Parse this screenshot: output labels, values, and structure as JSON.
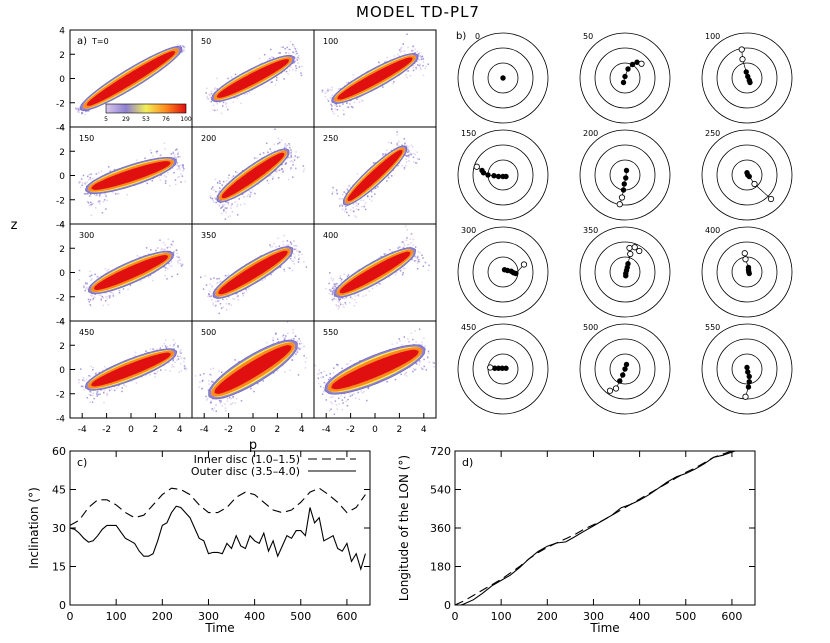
{
  "title": "MODEL TD-PL7",
  "panels": {
    "a": {
      "label": "a)",
      "xlabel": "p",
      "ylabel": "z",
      "xticks": [
        -4,
        -2,
        0,
        2,
        4
      ],
      "yticks": [
        -4,
        -2,
        0,
        2,
        4
      ],
      "xlim": [
        -5,
        5
      ],
      "ylim": [
        -4,
        4
      ],
      "colorbar": {
        "ticks": [
          "5",
          "29",
          "53",
          "76",
          "100"
        ],
        "colors": [
          "#d9c8ec",
          "#8e7fd0",
          "#f2ef59",
          "#ff8a1e",
          "#e01010"
        ]
      },
      "times": [
        "T=0",
        "50",
        "100",
        "150",
        "200",
        "250",
        "300",
        "350",
        "400",
        "450",
        "500",
        "550"
      ]
    },
    "b": {
      "label": "b)",
      "times": [
        "0",
        "50",
        "100",
        "150",
        "200",
        "250",
        "300",
        "350",
        "400",
        "450",
        "500",
        "550"
      ]
    },
    "c": {
      "label": "c)",
      "xlabel": "Time",
      "ylabel": "Inclination (°)",
      "xticks": [
        0,
        100,
        200,
        300,
        400,
        500,
        600
      ],
      "yticks": [
        0,
        15,
        30,
        45,
        60
      ],
      "xlim": [
        0,
        650
      ],
      "ylim": [
        0,
        60
      ],
      "legend": [
        "Inner disc (1.0–1.5)",
        "Outer disc (3.5–4.0)"
      ]
    },
    "d": {
      "label": "d)",
      "xlabel": "Time",
      "ylabel": "Longitude of the LON (°)",
      "xticks": [
        0,
        100,
        200,
        300,
        400,
        500,
        600
      ],
      "yticks": [
        0,
        180,
        360,
        540,
        720
      ],
      "xlim": [
        0,
        650
      ],
      "ylim": [
        0,
        720
      ]
    }
  },
  "chart_data": [
    {
      "type": "scatter",
      "panel": "a",
      "xlabel": "p",
      "ylabel": "z",
      "xlim": [
        -5,
        5
      ],
      "ylim": [
        -4,
        4
      ],
      "snapshots": [
        {
          "time": "T=0",
          "angle": 0.55,
          "length": 4.6,
          "width": 0.55,
          "spread": 0.25
        },
        {
          "time": "50",
          "angle": 0.48,
          "length": 3.6,
          "width": 0.55,
          "spread": 1.0
        },
        {
          "time": "100",
          "angle": 0.5,
          "length": 3.8,
          "width": 0.55,
          "spread": 1.0
        },
        {
          "time": "150",
          "angle": 0.32,
          "length": 3.7,
          "width": 0.6,
          "spread": 1.1
        },
        {
          "time": "200",
          "angle": 0.62,
          "length": 3.4,
          "width": 0.55,
          "spread": 1.2
        },
        {
          "time": "250",
          "angle": 0.75,
          "length": 3.3,
          "width": 0.5,
          "spread": 1.0
        },
        {
          "time": "300",
          "angle": 0.42,
          "length": 3.6,
          "width": 0.6,
          "spread": 1.0
        },
        {
          "time": "350",
          "angle": 0.55,
          "length": 3.6,
          "width": 0.6,
          "spread": 1.0
        },
        {
          "time": "400",
          "angle": 0.52,
          "length": 3.6,
          "width": 0.6,
          "spread": 1.0
        },
        {
          "time": "450",
          "angle": 0.38,
          "length": 3.8,
          "width": 0.6,
          "spread": 1.1
        },
        {
          "time": "500",
          "angle": 0.55,
          "length": 4.0,
          "width": 0.8,
          "spread": 1.4
        },
        {
          "time": "550",
          "angle": 0.4,
          "length": 4.2,
          "width": 0.8,
          "spread": 1.5
        }
      ]
    },
    {
      "type": "scatter",
      "panel": "b",
      "rings": [
        1,
        2,
        3
      ],
      "snapshots": [
        {
          "time": "0",
          "filled": [
            [
              0,
              0
            ]
          ],
          "open": []
        },
        {
          "time": "50",
          "filled": [
            [
              -0.1,
              -0.3
            ],
            [
              0,
              0.1
            ],
            [
              0.2,
              0.6
            ],
            [
              0.5,
              0.9
            ],
            [
              0.8,
              1.05
            ]
          ],
          "open": [
            [
              1.1,
              0.95
            ]
          ]
        },
        {
          "time": "100",
          "filled": [
            [
              0.2,
              -0.3
            ],
            [
              0.15,
              -0.15
            ],
            [
              0.05,
              0.1
            ],
            [
              -0.05,
              0.4
            ]
          ],
          "open": [
            [
              -0.3,
              1.25
            ],
            [
              -0.35,
              1.9
            ]
          ]
        },
        {
          "time": "150",
          "filled": [
            [
              0.2,
              -0.1
            ],
            [
              0,
              -0.1
            ],
            [
              -0.3,
              -0.1
            ],
            [
              -0.6,
              -0.05
            ],
            [
              -1,
              0
            ],
            [
              -1.3,
              0.15
            ],
            [
              -1.4,
              0.3
            ]
          ],
          "open": [
            [
              -1.75,
              0.55
            ]
          ]
        },
        {
          "time": "200",
          "filled": [
            [
              0.1,
              0.3
            ],
            [
              0.05,
              -0.2
            ],
            [
              -0.05,
              -0.6
            ],
            [
              -0.1,
              -1.0
            ]
          ],
          "open": [
            [
              -0.2,
              -1.5
            ],
            [
              -0.35,
              -1.95
            ]
          ]
        },
        {
          "time": "250",
          "filled": [
            [
              0,
              0.15
            ],
            [
              0.05,
              0
            ],
            [
              0.15,
              -0.1
            ]
          ],
          "open": [
            [
              0.5,
              -0.6
            ],
            [
              1.6,
              -1.6
            ]
          ]
        },
        {
          "time": "300",
          "filled": [
            [
              0.1,
              0.15
            ],
            [
              0.3,
              0.1
            ],
            [
              0.55,
              0.05
            ],
            [
              0.7,
              -0.05
            ],
            [
              0.85,
              -0.1
            ]
          ],
          "open": [
            [
              1.4,
              0.5
            ]
          ]
        },
        {
          "time": "350",
          "filled": [
            [
              0.05,
              -0.25
            ],
            [
              0.05,
              -0.1
            ],
            [
              0.1,
              0.1
            ],
            [
              0.15,
              0.3
            ],
            [
              0.2,
              0.55
            ]
          ],
          "open": [
            [
              0.35,
              1.2
            ],
            [
              0.3,
              1.6
            ],
            [
              0.65,
              1.65
            ],
            [
              0.95,
              1.4
            ]
          ]
        },
        {
          "time": "400",
          "filled": [
            [
              0.1,
              0.15
            ],
            [
              0.12,
              0
            ],
            [
              0.15,
              -0.1
            ],
            [
              0.1,
              0.3
            ]
          ],
          "open": [
            [
              -0.1,
              0.85
            ],
            [
              -0.15,
              1.25
            ]
          ]
        },
        {
          "time": "450",
          "filled": [
            [
              -0.55,
              0.05
            ],
            [
              -0.3,
              0.05
            ],
            [
              -0.05,
              0.05
            ],
            [
              0.2,
              0.05
            ]
          ],
          "open": [
            [
              -0.85,
              0.1
            ]
          ]
        },
        {
          "time": "500",
          "filled": [
            [
              0.1,
              0.3
            ],
            [
              0,
              0
            ],
            [
              -0.15,
              -0.4
            ],
            [
              -0.35,
              -0.8
            ]
          ],
          "open": [
            [
              -0.6,
              -1.3
            ],
            [
              -1.0,
              -1.45
            ]
          ]
        },
        {
          "time": "550",
          "filled": [
            [
              0,
              0.1
            ],
            [
              0.05,
              -0.2
            ],
            [
              0.15,
              -0.5
            ],
            [
              0.15,
              -0.85
            ],
            [
              0.1,
              -1.2
            ]
          ],
          "open": [
            [
              -0.1,
              -1.85
            ]
          ]
        }
      ]
    },
    {
      "type": "line",
      "panel": "c",
      "title": "",
      "xlabel": "Time",
      "ylabel": "Inclination (°)",
      "xlim": [
        0,
        650
      ],
      "ylim": [
        0,
        60
      ],
      "series": [
        {
          "name": "Inner disc (1.0–1.5)",
          "style": "dashed",
          "x": [
            0,
            20,
            40,
            60,
            80,
            100,
            120,
            140,
            160,
            180,
            200,
            220,
            240,
            260,
            280,
            300,
            320,
            340,
            360,
            380,
            400,
            420,
            440,
            460,
            480,
            500,
            520,
            540,
            560,
            580,
            600,
            620,
            640
          ],
          "y": [
            31,
            33,
            38,
            41,
            41,
            39,
            36,
            34,
            35,
            39,
            43,
            45.5,
            45,
            43,
            39,
            36,
            36,
            38,
            42,
            44,
            43,
            40,
            37,
            36,
            37,
            40,
            44,
            45.5,
            43,
            40,
            36,
            38,
            43
          ]
        },
        {
          "name": "Outer disc (3.5–4.0)",
          "style": "solid",
          "x": [
            0,
            10,
            20,
            30,
            40,
            50,
            60,
            70,
            80,
            90,
            100,
            110,
            120,
            130,
            140,
            150,
            160,
            170,
            180,
            190,
            200,
            210,
            220,
            230,
            240,
            250,
            260,
            270,
            280,
            290,
            300,
            310,
            320,
            330,
            340,
            350,
            360,
            370,
            380,
            390,
            400,
            410,
            420,
            430,
            440,
            450,
            460,
            470,
            480,
            490,
            500,
            510,
            520,
            530,
            540,
            550,
            560,
            570,
            580,
            590,
            600,
            610,
            620,
            630,
            640
          ],
          "y": [
            30,
            29.5,
            28,
            26,
            24.5,
            25,
            27,
            29.5,
            31,
            31,
            31,
            28.5,
            26,
            25,
            24,
            21,
            19,
            19,
            20,
            25,
            31,
            32,
            36,
            38.5,
            38,
            36,
            34,
            30,
            26,
            25,
            20,
            20.5,
            20.5,
            20,
            24,
            22,
            27,
            23,
            22,
            27,
            25,
            24,
            28,
            21,
            25,
            19,
            23,
            27,
            26,
            29,
            29,
            27,
            38,
            32,
            34,
            25,
            26,
            27,
            22,
            21,
            24,
            17,
            20,
            14,
            20
          ]
        }
      ]
    },
    {
      "type": "line",
      "panel": "d",
      "title": "",
      "xlabel": "Time",
      "ylabel": "Longitude of the LON (°)",
      "xlim": [
        0,
        650
      ],
      "ylim": [
        0,
        720
      ],
      "series": [
        {
          "name": "",
          "style": "solid",
          "x": [
            0,
            20,
            40,
            60,
            80,
            100,
            120,
            140,
            160,
            180,
            200,
            220,
            240,
            260,
            280,
            300,
            320,
            340,
            360,
            380,
            400,
            420,
            440,
            460,
            480,
            500,
            520,
            540,
            560,
            580,
            600,
            620,
            630
          ],
          "y": [
            -10,
            5,
            25,
            55,
            90,
            115,
            140,
            175,
            215,
            250,
            275,
            290,
            295,
            320,
            345,
            370,
            395,
            420,
            455,
            470,
            490,
            515,
            545,
            575,
            600,
            615,
            635,
            660,
            690,
            700,
            715,
            730,
            740
          ]
        },
        {
          "name": "",
          "style": "dashed",
          "x": [
            0,
            20,
            40,
            60,
            80,
            100,
            120,
            140,
            160,
            180,
            200,
            220,
            240,
            260,
            280,
            300,
            320,
            340,
            360,
            380,
            400,
            420,
            440,
            460,
            480,
            500,
            520,
            540,
            560,
            580,
            600,
            620,
            630
          ],
          "y": [
            0,
            20,
            45,
            70,
            95,
            120,
            150,
            180,
            215,
            245,
            270,
            290,
            310,
            330,
            355,
            375,
            395,
            420,
            445,
            470,
            495,
            520,
            545,
            570,
            595,
            620,
            640,
            665,
            690,
            705,
            720,
            735,
            745
          ]
        }
      ]
    }
  ]
}
